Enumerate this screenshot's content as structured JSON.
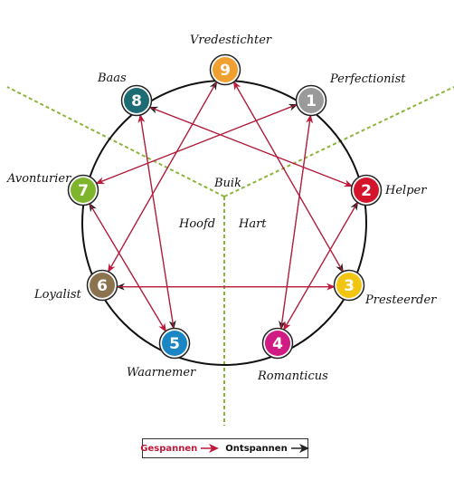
{
  "zones": [
    "Buik",
    "Hoofd",
    "Hart"
  ],
  "types": [
    {
      "number": "1",
      "name": "Perfectionist",
      "color": "#9a9a9a"
    },
    {
      "number": "2",
      "name": "Helper",
      "color": "#d4142b"
    },
    {
      "number": "3",
      "name": "Presteerder",
      "color": "#f2c512"
    },
    {
      "number": "4",
      "name": "Romanticus",
      "color": "#d01a84"
    },
    {
      "number": "5",
      "name": "Waarnemer",
      "color": "#1b86c4"
    },
    {
      "number": "6",
      "name": "Loyalist",
      "color": "#8b7350"
    },
    {
      "number": "7",
      "name": "Avonturier",
      "color": "#7fb52d"
    },
    {
      "number": "8",
      "name": "Baas",
      "color": "#1d6b73"
    },
    {
      "number": "9",
      "name": "Vredestichter",
      "color": "#f0a030"
    }
  ],
  "legend": {
    "stress_label": "Gespannen",
    "growth_label": "Ontspannen",
    "stress_color": "#c0183a",
    "growth_color": "#222222"
  },
  "zone_line_color": "#8db43a"
}
